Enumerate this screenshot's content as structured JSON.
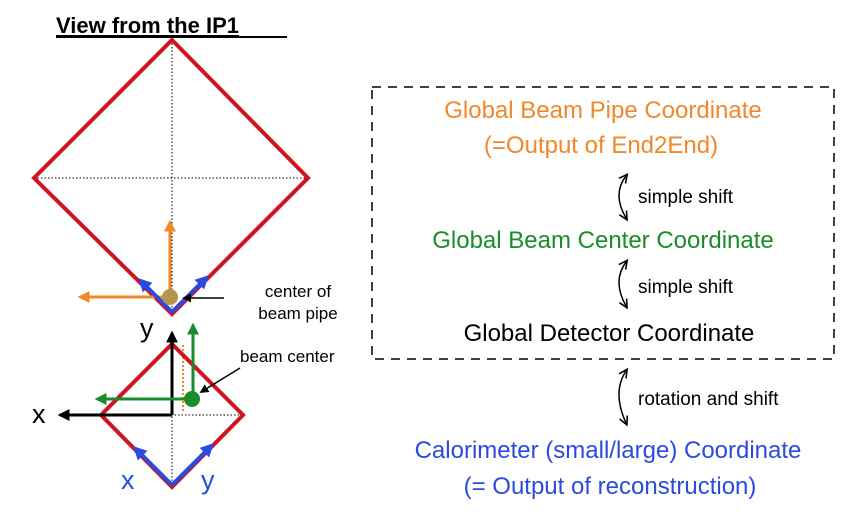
{
  "title": "View from the IP1",
  "labels": {
    "center_of_beam_pipe_line1": "center of",
    "center_of_beam_pipe_line2": "beam pipe",
    "beam_center": "beam center",
    "axis_x_black": "x",
    "axis_y_black": "y",
    "axis_x_blue": "x",
    "axis_y_blue": "y"
  },
  "coordinates": {
    "global_beam_pipe_line1": "Global Beam Pipe Coordinate",
    "global_beam_pipe_line2": "(=Output of End2End)",
    "shift_1": "simple shift",
    "global_beam_center": "Global Beam Center Coordinate",
    "shift_2": "simple shift",
    "global_detector": "Global Detector Coordinate",
    "shift_3": "rotation and shift",
    "calorimeter_line1": "Calorimeter (small/large) Coordinate",
    "calorimeter_line2": "(= Output of reconstruction)"
  },
  "colors": {
    "detector_outline": "#d0141e",
    "beam_pipe": "#f0882a",
    "beam_center": "#1a8c2a",
    "calorimeter": "#2a4be0",
    "pipe_dot": "#b5954a",
    "text": "#000000"
  }
}
